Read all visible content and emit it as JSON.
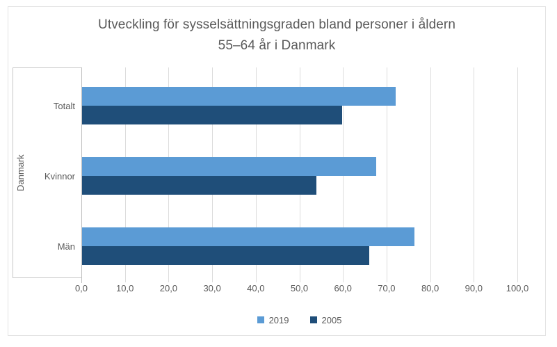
{
  "chart_data": {
    "type": "bar",
    "orientation": "horizontal",
    "title_lines": [
      "Utveckling för sysselsättningsgraden bland personer i åldern",
      "55–64 år i Danmark"
    ],
    "group_label": "Danmark",
    "categories": [
      "Totalt",
      "Kvinnor",
      "Män"
    ],
    "series": [
      {
        "name": "2019",
        "color": "#5B9BD5",
        "values": [
          71.9,
          67.5,
          76.3
        ]
      },
      {
        "name": "2005",
        "color": "#1F4E79",
        "values": [
          59.7,
          53.8,
          65.8
        ]
      }
    ],
    "xlim": [
      0,
      100
    ],
    "x_tick_step": 10,
    "x_tick_labels": [
      "0,0",
      "10,0",
      "20,0",
      "30,0",
      "40,0",
      "50,0",
      "60,0",
      "70,0",
      "80,0",
      "90,0",
      "100,0"
    ],
    "grid": true,
    "legend_position": "bottom",
    "axis_number_format": "decimal-comma"
  },
  "palette": {
    "text": "#595959",
    "gridline": "#DCDCDC",
    "axis_line": "#BFBFBF",
    "chart_border": "#E3E3E3",
    "series_2019": "#5B9BD5",
    "series_2005": "#1F4E79"
  }
}
